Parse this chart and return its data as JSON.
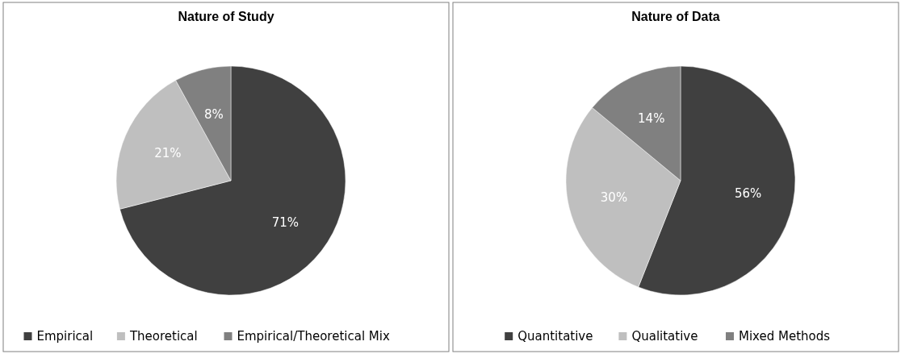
{
  "chart_data": [
    {
      "type": "pie",
      "title": "Nature of Study",
      "categories": [
        "Empirical",
        "Theoretical",
        "Empirical/Theoretical Mix"
      ],
      "values": [
        71,
        21,
        8
      ],
      "colors": [
        "#404040",
        "#bfbfbf",
        "#808080"
      ],
      "value_labels": [
        "71%",
        "21%",
        "8%"
      ],
      "legend": "bottom"
    },
    {
      "type": "pie",
      "title": "Nature of Data",
      "categories": [
        "Quantitative",
        "Qualitative",
        "Mixed Methods"
      ],
      "values": [
        56,
        30,
        14
      ],
      "colors": [
        "#404040",
        "#bfbfbf",
        "#808080"
      ],
      "value_labels": [
        "56%",
        "30%",
        "14%"
      ],
      "legend": "bottom"
    }
  ]
}
